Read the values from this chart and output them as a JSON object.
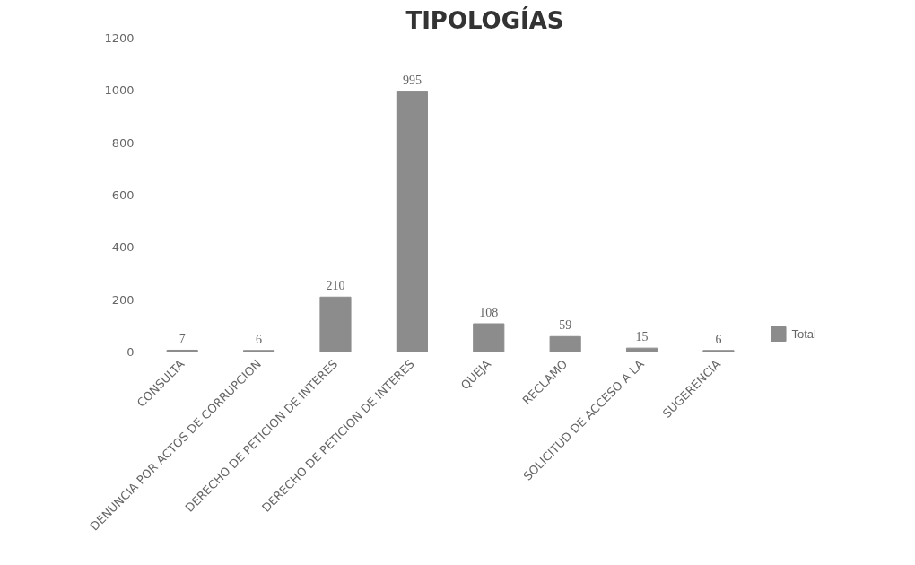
{
  "chart_data": {
    "type": "bar",
    "title": "TIPOLOGÍAS",
    "categories": [
      "CONSULTA",
      "DENUNCIA POR ACTOS DE CORRUPCION",
      "DERECHO DE PETICION DE INTERES",
      "DERECHO DE PETICION DE INTERES",
      "QUEJA",
      "RECLAMO",
      "SOLICITUD DE ACCESO A LA",
      "SUGERENCIA"
    ],
    "series": [
      {
        "name": "Total",
        "color": "#8c8c8c",
        "values": [
          7,
          6,
          210,
          995,
          108,
          59,
          15,
          6
        ]
      }
    ],
    "ylim": [
      0,
      1200
    ],
    "yticks": [
      0,
      200,
      400,
      600,
      800,
      1000,
      1200
    ],
    "grid": false,
    "legend": "right",
    "data_labels": true
  }
}
